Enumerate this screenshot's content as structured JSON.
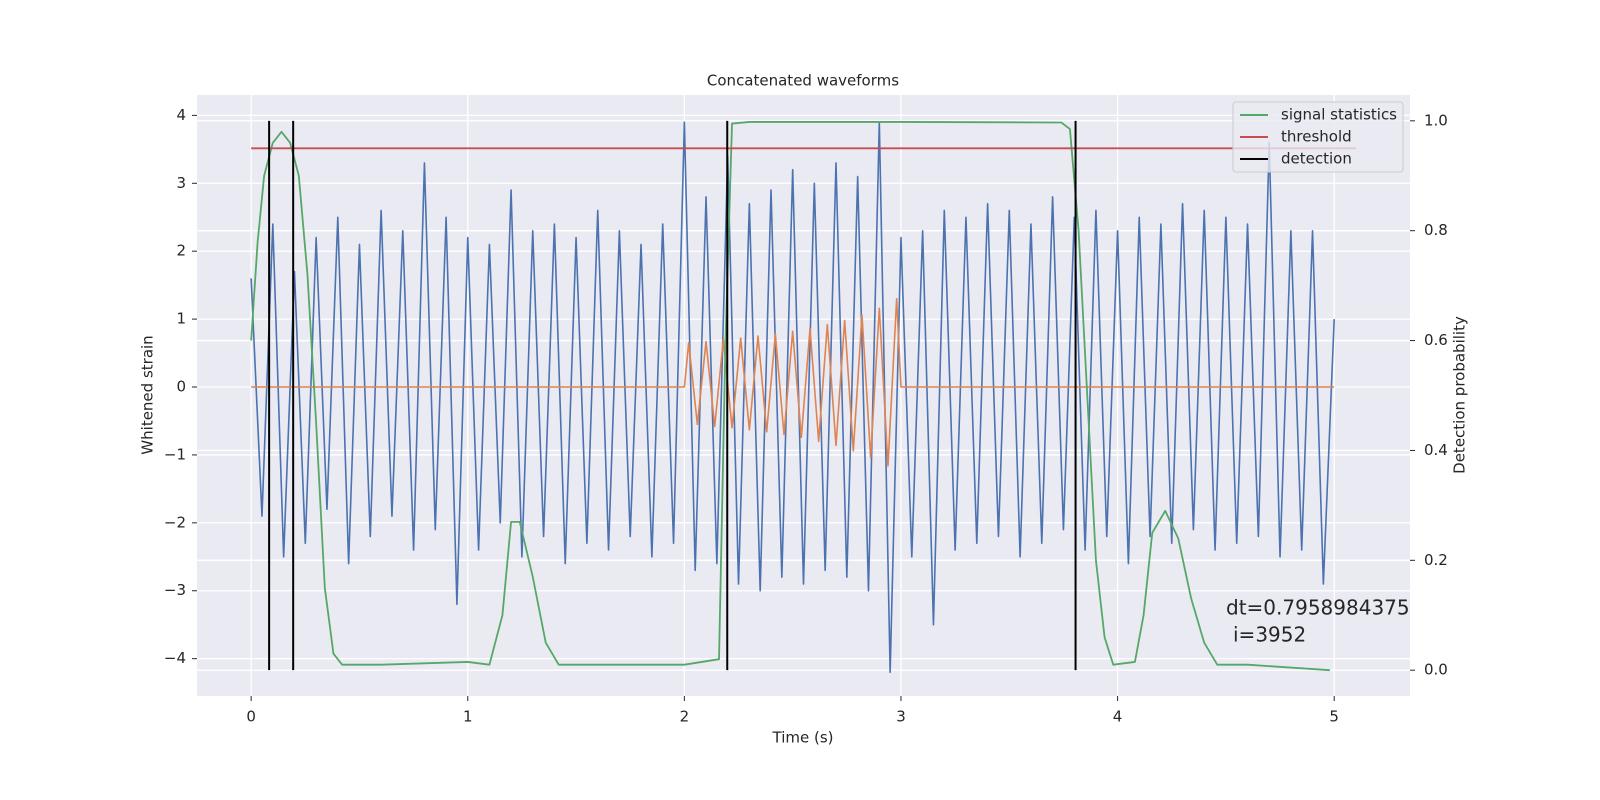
{
  "chart_data": {
    "type": "line",
    "title": "Concatenated waveforms",
    "xlabel": "Time (s)",
    "ylabel": "Whitened strain",
    "y2label": "Detection probability",
    "xlim": [
      -0.25,
      5.35
    ],
    "ylim": [
      -4.55,
      4.3
    ],
    "y2lim": [
      -0.047,
      1.047
    ],
    "xticks": [
      0,
      1,
      2,
      3,
      4,
      5
    ],
    "yticks": [
      {
        "value": -4,
        "label": "−4"
      },
      {
        "value": -3,
        "label": "−3"
      },
      {
        "value": -2,
        "label": "−2"
      },
      {
        "value": -1,
        "label": "−1"
      },
      0,
      1,
      2,
      3,
      4
    ],
    "y2ticks": [
      {
        "value": 0,
        "label": "0.0"
      },
      0.2,
      0.4,
      0.6,
      0.8,
      {
        "value": 1,
        "label": "1.0"
      }
    ],
    "grid": true,
    "legend": "upper right",
    "series": [
      {
        "color": "#4c72b0",
        "x": [
          0,
          0.05,
          0.1,
          0.15,
          0.2,
          0.25,
          0.3,
          0.35,
          0.4,
          0.45,
          0.5,
          0.55,
          0.6,
          0.65,
          0.7,
          0.75,
          0.8,
          0.85,
          0.9,
          0.95,
          1,
          1.05,
          1.1,
          1.15,
          1.2,
          1.25,
          1.3,
          1.35,
          1.4,
          1.45,
          1.5,
          1.55,
          1.6,
          1.65,
          1.7,
          1.75,
          1.8,
          1.85,
          1.9,
          1.95,
          2,
          2.05,
          2.1,
          2.15,
          2.2,
          2.25,
          2.3,
          2.35,
          2.4,
          2.45,
          2.5,
          2.55,
          2.6,
          2.65,
          2.7,
          2.75,
          2.8,
          2.85,
          2.9,
          2.95,
          3,
          3.05,
          3.1,
          3.15,
          3.2,
          3.25,
          3.3,
          3.35,
          3.4,
          3.45,
          3.5,
          3.55,
          3.6,
          3.65,
          3.7,
          3.75,
          3.8,
          3.85,
          3.9,
          3.95,
          4,
          4.05,
          4.1,
          4.15,
          4.2,
          4.25,
          4.3,
          4.35,
          4.4,
          4.45,
          4.5,
          4.55,
          4.6,
          4.65,
          4.7,
          4.75,
          4.8,
          4.85,
          4.9,
          4.95,
          5
        ],
        "values": [
          1.6,
          -1.9,
          2.4,
          -2.5,
          1.7,
          -2.3,
          2.2,
          -1.8,
          2.5,
          -2.6,
          2.1,
          -2.2,
          2.6,
          -1.9,
          2.3,
          -2.4,
          3.3,
          -2.1,
          2.5,
          -3.2,
          2.2,
          -2.4,
          2.1,
          -2.0,
          2.9,
          -2.5,
          2.3,
          -2.2,
          2.4,
          -2.6,
          2.2,
          -2.3,
          2.6,
          -2.4,
          2.3,
          -2.2,
          2.1,
          -2.5,
          2.4,
          -2.3,
          3.9,
          -2.7,
          2.8,
          -2.6,
          3.4,
          -2.9,
          2.7,
          -3.0,
          2.9,
          -2.8,
          3.2,
          -2.9,
          3.0,
          -2.7,
          3.3,
          -2.8,
          3.1,
          -3.0,
          3.9,
          -4.2,
          2.2,
          -2.5,
          2.3,
          -3.5,
          2.6,
          -2.4,
          2.5,
          -2.3,
          2.7,
          -2.2,
          2.6,
          -2.5,
          2.4,
          -2.3,
          2.8,
          -2.1,
          2.5,
          -2.4,
          2.6,
          -2.2,
          2.3,
          -2.6,
          2.5,
          -2.2,
          2.4,
          -2.3,
          2.7,
          -2.1,
          2.6,
          -2.4,
          2.5,
          -2.3,
          2.4,
          -2.2,
          3.6,
          -2.5,
          2.3,
          -2.4,
          2.3,
          -2.9,
          1.0
        ]
      },
      {
        "color": "#dd8452",
        "x": [
          0,
          2,
          2.02,
          2.06,
          2.1,
          2.14,
          2.18,
          2.22,
          2.26,
          2.3,
          2.34,
          2.38,
          2.42,
          2.46,
          2.5,
          2.54,
          2.58,
          2.62,
          2.66,
          2.7,
          2.74,
          2.78,
          2.82,
          2.86,
          2.9,
          2.94,
          2.98,
          3,
          5
        ],
        "values": [
          0,
          0,
          0.65,
          -0.55,
          0.67,
          -0.58,
          0.7,
          -0.6,
          0.72,
          -0.63,
          0.75,
          -0.66,
          0.78,
          -0.7,
          0.82,
          -0.74,
          0.86,
          -0.8,
          0.92,
          -0.86,
          0.98,
          -0.94,
          1.06,
          -1.04,
          1.16,
          -1.16,
          1.3,
          0,
          0
        ]
      },
      {
        "name": "signal statistics",
        "color": "#55a868",
        "axis": "y2",
        "x": [
          0,
          0.03,
          0.06,
          0.1,
          0.14,
          0.18,
          0.22,
          0.26,
          0.3,
          0.34,
          0.38,
          0.42,
          0.6,
          1.0,
          1.1,
          1.16,
          1.2,
          1.24,
          1.3,
          1.36,
          1.42,
          1.6,
          2.0,
          2.16,
          2.19,
          2.22,
          2.3,
          3.0,
          3.74,
          3.78,
          3.82,
          3.86,
          3.9,
          3.94,
          3.98,
          4.08,
          4.12,
          4.16,
          4.22,
          4.28,
          4.34,
          4.4,
          4.46,
          4.6,
          4.98
        ],
        "values": [
          0.6,
          0.78,
          0.9,
          0.96,
          0.98,
          0.96,
          0.9,
          0.72,
          0.45,
          0.15,
          0.03,
          0.01,
          0.01,
          0.015,
          0.01,
          0.1,
          0.27,
          0.27,
          0.17,
          0.05,
          0.01,
          0.01,
          0.01,
          0.02,
          0.6,
          0.995,
          0.998,
          0.998,
          0.997,
          0.985,
          0.8,
          0.5,
          0.2,
          0.06,
          0.01,
          0.015,
          0.1,
          0.25,
          0.29,
          0.24,
          0.13,
          0.05,
          0.01,
          0.01,
          0
        ]
      },
      {
        "name": "threshold",
        "color": "#c44e52",
        "axis": "y2",
        "x": [
          0,
          5.1
        ],
        "values": [
          0.95,
          0.95
        ]
      }
    ],
    "detections": {
      "name": "detection",
      "color": "#000000",
      "axis": "y2",
      "x": [
        0.083,
        0.194,
        2.198,
        3.806
      ],
      "span": [
        0,
        1
      ]
    },
    "annotation": [
      "dt=0.7958984375",
      "i=3952"
    ]
  }
}
